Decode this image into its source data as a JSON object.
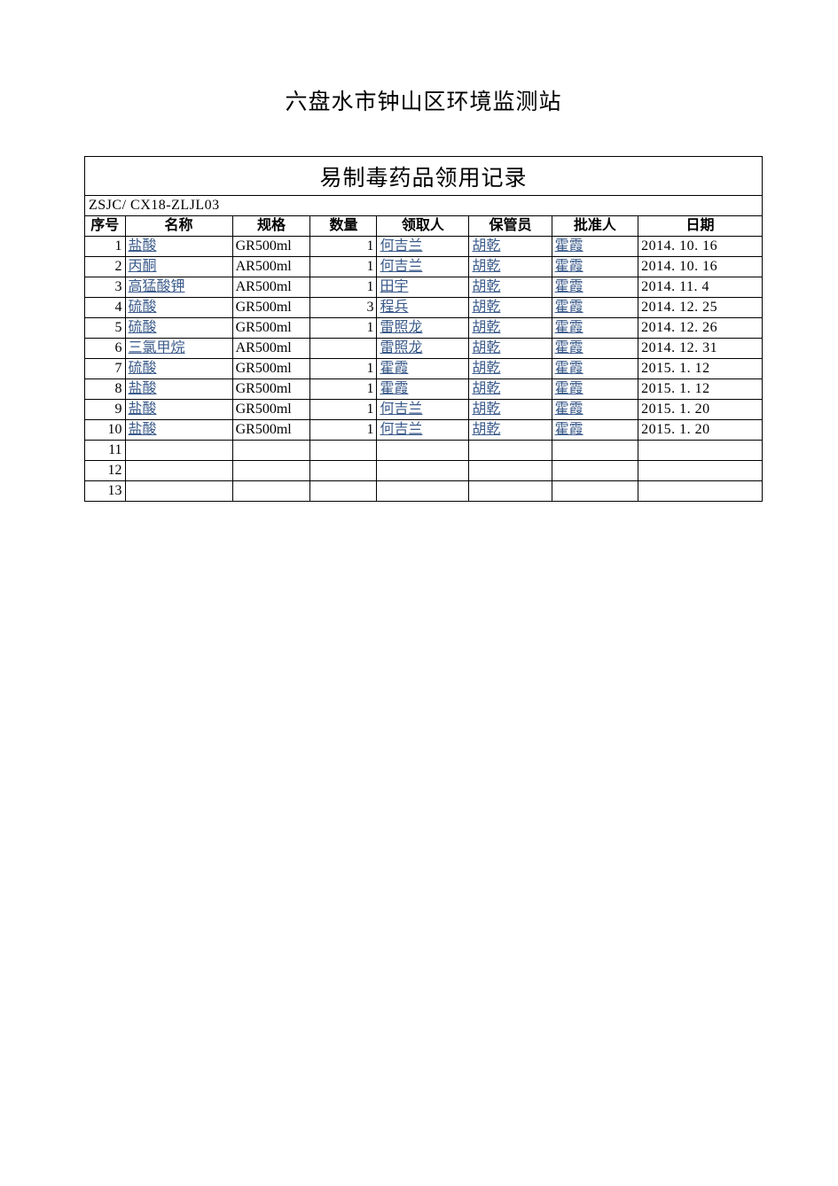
{
  "page_title": "六盘水市钟山区环境监测站",
  "table_title": "易制毒药品领用记录",
  "form_code": "ZSJC/ CX18-ZLJL03",
  "link_color": "#3a5a8a",
  "headers": {
    "seq": "序号",
    "name": "名称",
    "spec": "规格",
    "qty": "数量",
    "recv": "领取人",
    "keeper": "保管员",
    "approver": "批准人",
    "date": "日期"
  },
  "rows": [
    {
      "seq": "1",
      "name": "盐酸",
      "spec": "GR500ml",
      "qty": "1",
      "recv": "何吉兰",
      "keeper": "胡乾",
      "approver": "霍霞",
      "date": "2014. 10. 16"
    },
    {
      "seq": "2",
      "name": "丙酮",
      "spec": "AR500ml",
      "qty": "1",
      "recv": "何吉兰",
      "keeper": "胡乾",
      "approver": "霍霞",
      "date": "2014. 10. 16"
    },
    {
      "seq": "3",
      "name": "高猛酸钾",
      "spec": "AR500ml",
      "qty": "1",
      "recv": "田宇",
      "keeper": "胡乾",
      "approver": "霍霞",
      "date": "2014. 11. 4"
    },
    {
      "seq": "4",
      "name": "硫酸",
      "spec": "GR500ml",
      "qty": "3",
      "recv": "程兵",
      "keeper": "胡乾",
      "approver": "霍霞",
      "date": "2014. 12. 25"
    },
    {
      "seq": "5",
      "name": "硫酸",
      "spec": "GR500ml",
      "qty": "1",
      "recv": "雷照龙",
      "keeper": "胡乾",
      "approver": "霍霞",
      "date": "2014. 12. 26"
    },
    {
      "seq": "6",
      "name": "三氯甲烷",
      "spec": "AR500ml",
      "qty": "",
      "recv": "雷照龙",
      "keeper": "胡乾",
      "approver": "霍霞",
      "date": "2014. 12. 31"
    },
    {
      "seq": "7",
      "name": "硫酸",
      "spec": "GR500ml",
      "qty": "1",
      "recv": "霍霞",
      "keeper": "胡乾",
      "approver": "霍霞",
      "date": "2015. 1. 12"
    },
    {
      "seq": "8",
      "name": "盐酸",
      "spec": "GR500ml",
      "qty": "1",
      "recv": "霍霞",
      "keeper": "胡乾",
      "approver": "霍霞",
      "date": "2015. 1. 12"
    },
    {
      "seq": "9",
      "name": "盐酸",
      "spec": "GR500ml",
      "qty": "1",
      "recv": "何吉兰",
      "keeper": "胡乾",
      "approver": "霍霞",
      "date": "2015. 1. 20"
    },
    {
      "seq": "10",
      "name": "盐酸",
      "spec": "GR500ml",
      "qty": "1",
      "recv": "何吉兰",
      "keeper": "胡乾",
      "approver": "霍霞",
      "date": "2015. 1. 20"
    },
    {
      "seq": "11",
      "name": "",
      "spec": "",
      "qty": "",
      "recv": "",
      "keeper": "",
      "approver": "",
      "date": ""
    },
    {
      "seq": "12",
      "name": "",
      "spec": "",
      "qty": "",
      "recv": "",
      "keeper": "",
      "approver": "",
      "date": ""
    },
    {
      "seq": "13",
      "name": "",
      "spec": "",
      "qty": "",
      "recv": "",
      "keeper": "",
      "approver": "",
      "date": ""
    }
  ]
}
